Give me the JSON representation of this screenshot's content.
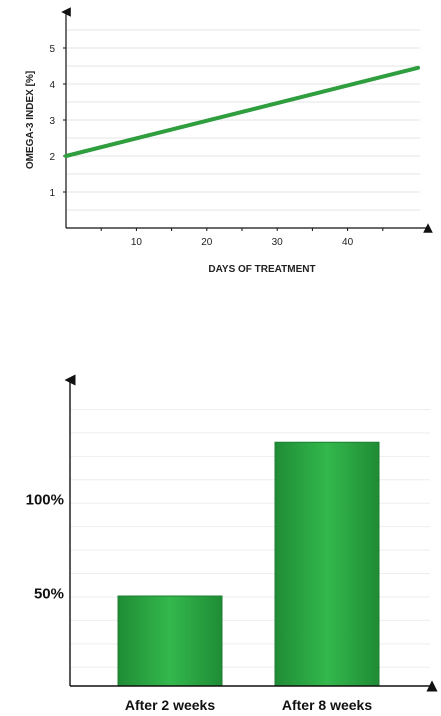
{
  "chart_data": [
    {
      "type": "line",
      "title": "",
      "xlabel": "DAYS OF TREATMENT",
      "ylabel": "OMEGA-3 INDEX [%]",
      "xlim": [
        0,
        50
      ],
      "ylim": [
        0,
        6
      ],
      "x_ticks": [
        10,
        20,
        30,
        40
      ],
      "y_ticks": [
        1,
        2,
        3,
        4,
        5
      ],
      "grid": true,
      "series": [
        {
          "x": [
            0,
            50
          ],
          "y": [
            2.0,
            4.45
          ],
          "color": "#2e9e3e"
        }
      ]
    },
    {
      "type": "bar",
      "title": "",
      "xlabel": "",
      "ylabel": "",
      "ylim": [
        0,
        160
      ],
      "y_ticks": [
        50,
        100
      ],
      "y_tick_labels": [
        "50%",
        "100%"
      ],
      "grid": true,
      "categories": [
        "After 2 weeks",
        "After 8 weeks"
      ],
      "values": [
        48,
        130
      ],
      "color": "#2db04a"
    }
  ]
}
